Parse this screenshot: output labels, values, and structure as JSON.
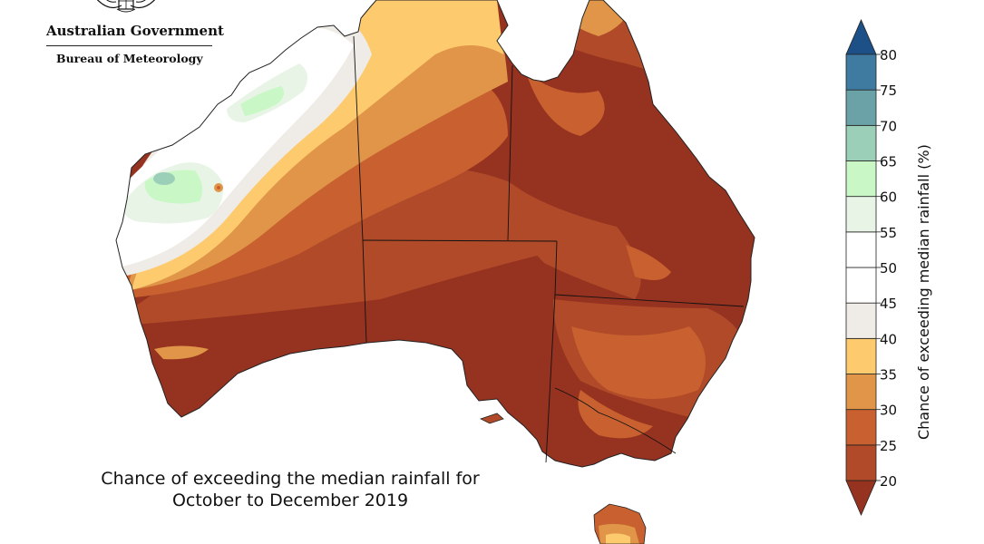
{
  "header": {
    "government_name": "Australian Government",
    "bureau_name": "Bureau of Meteorology",
    "crest_icon": "coat-of-arms-icon"
  },
  "caption": {
    "line1": "Chance of exceeding the median rainfall for",
    "line2": "October to December 2019"
  },
  "legend": {
    "title": "Chance of exceeding median rainfall (%)",
    "ticks": [
      "20",
      "25",
      "30",
      "35",
      "40",
      "45",
      "50",
      "55",
      "60",
      "65",
      "70",
      "75",
      "80"
    ],
    "bins": [
      {
        "range": "<20",
        "color": "#963220"
      },
      {
        "range": "20-25",
        "color": "#b04a28"
      },
      {
        "range": "25-30",
        "color": "#c8612f"
      },
      {
        "range": "30-35",
        "color": "#e09548"
      },
      {
        "range": "35-40",
        "color": "#fdcb6e"
      },
      {
        "range": "40-45",
        "color": "#efebe6"
      },
      {
        "range": "45-50",
        "color": "#ffffff"
      },
      {
        "range": "50-55",
        "color": "#ffffff"
      },
      {
        "range": "55-60",
        "color": "#e8f5e6"
      },
      {
        "range": "60-65",
        "color": "#c9f7c6"
      },
      {
        "range": "65-70",
        "color": "#9ccfb8"
      },
      {
        "range": "70-75",
        "color": "#6aa2a8"
      },
      {
        "range": "75-80",
        "color": "#3f7ba1"
      },
      {
        "range": ">80",
        "color": "#1e5088"
      }
    ]
  }
}
